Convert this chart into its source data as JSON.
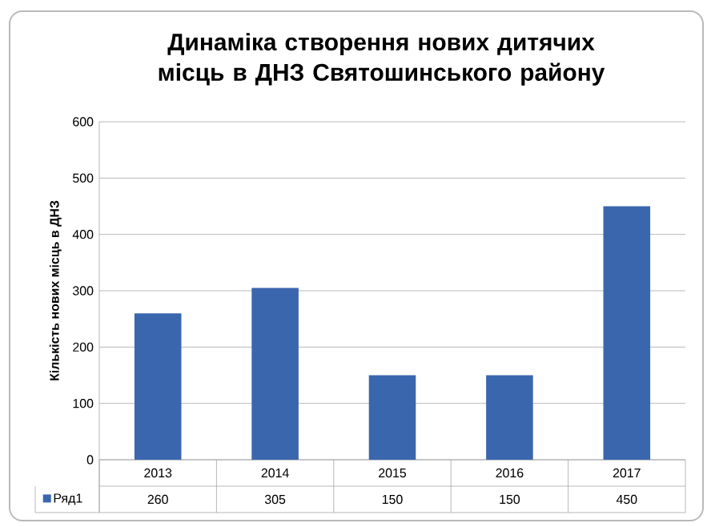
{
  "chart_data": {
    "type": "bar",
    "title": "Динаміка створення нових дитячих місць в ДНЗ Святошинського району",
    "ylabel": "Кількість нових місць в ДНЗ",
    "categories": [
      "2013",
      "2014",
      "2015",
      "2016",
      "2017"
    ],
    "series": [
      {
        "name": "Ряд1",
        "color": "#3a66ae",
        "values": [
          260,
          305,
          150,
          150,
          450
        ]
      }
    ],
    "data_labels": true,
    "ylim": [
      0,
      600
    ],
    "yticks": [
      0,
      100,
      200,
      300,
      400,
      500,
      600
    ],
    "grid": "y",
    "legend": "bottom"
  }
}
